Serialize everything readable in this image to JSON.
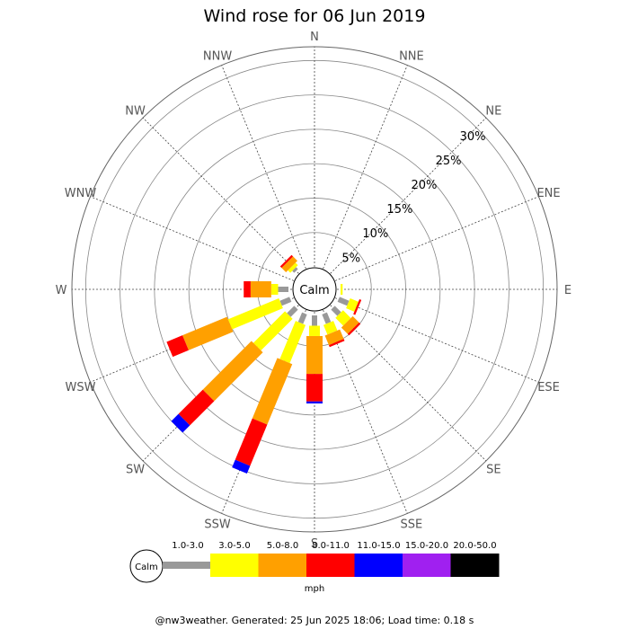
{
  "title": "Wind rose for 06 Jun 2019",
  "calm_label": "Calm",
  "footer": "@nw3weather. Generated: 25 Jun 2025 18:06; Load time: 0.18 s",
  "unit": "mph",
  "chart_data": {
    "type": "wind-rose",
    "directions": [
      "N",
      "NNE",
      "NE",
      "ENE",
      "E",
      "ESE",
      "SE",
      "SSE",
      "S",
      "SSW",
      "SW",
      "WSW",
      "W",
      "WNW",
      "NW",
      "NNW"
    ],
    "radial_ticks": [
      "5%",
      "10%",
      "15%",
      "20%",
      "25%",
      "30%"
    ],
    "radial_values": [
      5,
      10,
      15,
      20,
      25,
      30
    ],
    "rmax": 32,
    "speed_bins": [
      {
        "label": "1.0-3.0",
        "color": "#999999"
      },
      {
        "label": "3.0-5.0",
        "color": "#ffff00"
      },
      {
        "label": "5.0-8.0",
        "color": "#ffa000"
      },
      {
        "label": "8.0-11.0",
        "color": "#ff0000"
      },
      {
        "label": "11.0-15.0",
        "color": "#0000ff"
      },
      {
        "label": "15.0-20.0",
        "color": "#a020f0"
      },
      {
        "label": "20.0-50.0",
        "color": "#000000"
      }
    ],
    "frequencies_pct": {
      "N": [
        0,
        0,
        0,
        0,
        0,
        0,
        0
      ],
      "NNE": [
        0,
        0,
        0,
        0,
        0,
        0,
        0
      ],
      "NE": [
        0,
        0,
        0,
        0,
        0,
        0,
        0
      ],
      "ENE": [
        0,
        0,
        0,
        0,
        0,
        0,
        0
      ],
      "E": [
        0,
        0.3,
        0,
        0,
        0,
        0,
        0
      ],
      "ESE": [
        1.5,
        1.3,
        0,
        0.3,
        0,
        0,
        0
      ],
      "SE": [
        1.3,
        1.6,
        1.3,
        0.3,
        0,
        0,
        0
      ],
      "SSE": [
        1.5,
        1.5,
        1.5,
        0.3,
        0,
        0,
        0
      ],
      "S": [
        1.5,
        1.5,
        5.5,
        4.0,
        0.3,
        0,
        0
      ],
      "SSW": [
        1.5,
        6.0,
        9.5,
        6.5,
        1.2,
        0,
        0
      ],
      "SW": [
        1.5,
        6.5,
        10.0,
        5.0,
        1.5,
        0,
        0
      ],
      "WSW": [
        1.5,
        8.0,
        7.0,
        2.5,
        0,
        0,
        0
      ],
      "W": [
        1.5,
        1.0,
        3.0,
        1.0,
        0,
        0,
        0
      ],
      "WNW": [
        0,
        0,
        0,
        0,
        0,
        0,
        0
      ],
      "NW": [
        0.4,
        0.5,
        0.9,
        0.3,
        0,
        0,
        0
      ],
      "NNW": [
        0,
        0,
        0,
        0,
        0,
        0,
        0
      ]
    }
  }
}
